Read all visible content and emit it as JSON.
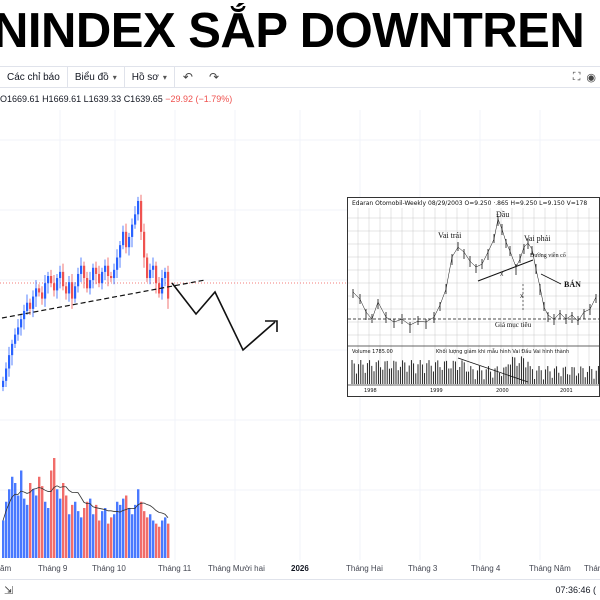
{
  "headline": "NINDEX SẮP DOWNTREN",
  "toolbar": {
    "indicators_label": "Các chỉ báo",
    "chart_label": "Biểu đồ",
    "profile_label": "Hồ sơ"
  },
  "ohlc": {
    "o": "O1669.61",
    "h": "H1669.61",
    "l": "L1639.33",
    "c": "C1639.65",
    "change": "−29.92 (−1.79%)"
  },
  "time_axis": {
    "labels": [
      "ăm",
      "Tháng 9",
      "Tháng 10",
      "Tháng 11",
      "Tháng Mười hai",
      "2026",
      "Tháng Hai",
      "Tháng 3",
      "Tháng 4",
      "Tháng Năm",
      "Thán"
    ],
    "bold_label": "2026"
  },
  "status": {
    "time": "07:36:46 ("
  },
  "inset": {
    "title": "Edaran Otomobil-Weekly  08/29/2003  O=9.250  ·.865  H=9.250  L=9.150  V=178",
    "label_head": "Đầu",
    "label_left_shoulder": "Vai trái",
    "label_right_shoulder": "Vai phải",
    "label_neckline": "Đường viền cổ",
    "label_sell": "BÁN",
    "label_target": "Giá mục tiêu",
    "label_x1": "X",
    "label_x2": "X",
    "volume_label": "Volume  1785.00",
    "volume_note": "Khối lượng giảm khi mẫu hình Vai Đầu Vai hình thành",
    "years": [
      "1998",
      "1999",
      "2000",
      "2001"
    ]
  },
  "colors": {
    "up": "#2962ff",
    "down": "#ef5350",
    "neckline": "#111111"
  },
  "chart_data": {
    "type": "candlestick",
    "description_series": "VNINDEX daily",
    "price_range": [
      1590,
      1770
    ],
    "closes": [
      1560,
      1572,
      1585,
      1596,
      1605,
      1612,
      1620,
      1628,
      1636,
      1630,
      1642,
      1650,
      1646,
      1640,
      1655,
      1662,
      1655,
      1648,
      1660,
      1666,
      1652,
      1645,
      1656,
      1640,
      1652,
      1664,
      1672,
      1660,
      1650,
      1658,
      1670,
      1664,
      1655,
      1666,
      1672,
      1662,
      1660,
      1668,
      1680,
      1692,
      1705,
      1690,
      1700,
      1712,
      1722,
      1735,
      1705,
      1680,
      1660,
      1668,
      1672,
      1655,
      1645,
      1660,
      1666,
      1640
    ],
    "volumes": [
      60,
      90,
      110,
      130,
      120,
      100,
      140,
      95,
      85,
      120,
      110,
      100,
      130,
      115,
      90,
      80,
      140,
      160,
      110,
      95,
      120,
      100,
      70,
      85,
      90,
      75,
      65,
      80,
      90,
      95,
      70,
      85,
      60,
      75,
      80,
      55,
      65,
      70,
      90,
      85,
      95,
      100,
      80,
      70,
      85,
      110,
      90,
      75,
      65,
      70,
      60,
      55,
      50,
      60,
      65,
      55
    ]
  }
}
